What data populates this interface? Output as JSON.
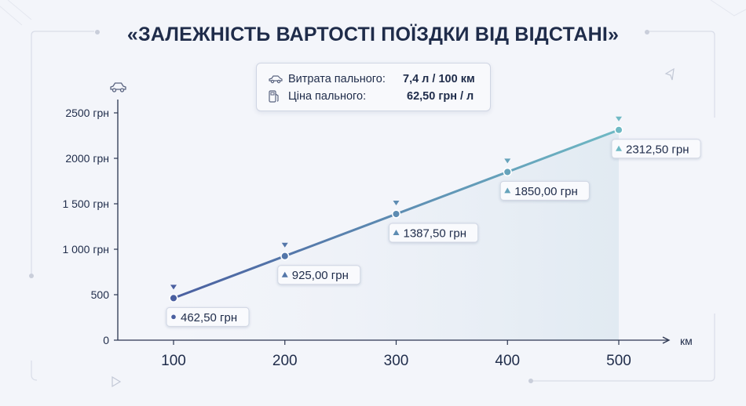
{
  "title": "«ЗАЛЕЖНІСТЬ ВАРТОСТІ ПОЇЗДКИ ВІД ВІДСТАНІ»",
  "info": {
    "consumption_label": "Витрата пального:",
    "consumption_value": "7,4 л / 100 км",
    "price_label": "Ціна пального:",
    "price_value": "62,50 грн / л",
    "car_icon": "car-icon",
    "fuel_icon": "fuel-pump-icon"
  },
  "colors": {
    "line_start": "#4a5fa0",
    "line_end": "#6fb9c4",
    "axis": "#2b3550",
    "text": "#1f2c4a"
  },
  "chart_data": {
    "type": "line",
    "x": [
      100,
      200,
      300,
      400,
      500
    ],
    "xlabel": "км",
    "ylabel_icon": "car-icon",
    "xlim": [
      50,
      550
    ],
    "ylim": [
      0,
      2500
    ],
    "yticks": [
      0,
      500,
      1000,
      1500,
      2000,
      2500
    ],
    "ytick_labels": [
      "0",
      "500",
      "1 000 грн",
      "1 500 грн",
      "2000 грн",
      "2500 грн"
    ],
    "xtick_labels": [
      "100",
      "200",
      "300",
      "400",
      "500"
    ],
    "series": [
      {
        "values": [
          462.5,
          925.0,
          1387.5,
          1850.0,
          2312.5
        ],
        "labels": [
          "462,50 грн",
          "925,00 грн",
          "1387,50 грн",
          "1850,00 грн",
          "2312,50 грн"
        ]
      }
    ],
    "grid": false
  }
}
